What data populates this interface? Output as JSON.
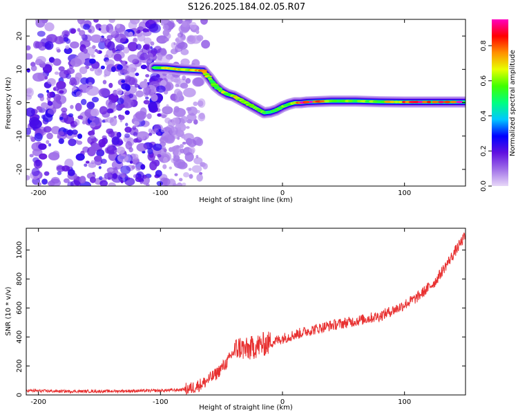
{
  "title": "S126.2025.184.02.05.R07",
  "chart_data": [
    {
      "type": "heatmap",
      "xlabel": "Height of straight line (km)",
      "ylabel": "Frequency (Hz)",
      "xlim": [
        -210,
        150
      ],
      "ylim": [
        -25,
        25
      ],
      "x_ticks": [
        -200,
        -100,
        0,
        100
      ],
      "y_ticks": [
        20,
        10,
        0,
        -10,
        -20
      ],
      "tick_labels_x": [
        "-200",
        "-100",
        "0",
        "100"
      ],
      "tick_labels_y": [
        "20",
        "10",
        "0",
        "-10",
        "-20"
      ],
      "colorbar": {
        "label": "Normalized spectral amplitude",
        "range": [
          0,
          0.95
        ],
        "ticks": [
          "0.0",
          "0.2",
          "0.4",
          "0.6",
          "0.8"
        ],
        "colormap": [
          "#e8d8f8",
          "#a070e8",
          "#6010e0",
          "#0000ff",
          "#00c8ff",
          "#00ff80",
          "#40ff00",
          "#e8ff00",
          "#ff9000",
          "#ff0000",
          "#ff00c0"
        ]
      },
      "noise_region_x": [
        -210,
        -80
      ],
      "ridge": {
        "x": [
          -105,
          -95,
          -85,
          -75,
          -65,
          -60,
          -55,
          -50,
          -45,
          -40,
          -35,
          -30,
          -25,
          -20,
          -15,
          -10,
          -5,
          0,
          5,
          10,
          15,
          20,
          40,
          60,
          80,
          100,
          120,
          150
        ],
        "y": [
          10.5,
          10.4,
          10.0,
          9.8,
          9.6,
          7.5,
          5.0,
          3.5,
          2.5,
          2.0,
          1.0,
          0.0,
          -1.0,
          -2.0,
          -3.0,
          -2.8,
          -2.2,
          -1.2,
          -0.5,
          0.0,
          0.0,
          0.2,
          0.5,
          0.5,
          0.3,
          0.2,
          0.2,
          0.2
        ],
        "amplitude": [
          0.5,
          0.7,
          0.75,
          0.7,
          0.8,
          0.6,
          0.55,
          0.6,
          0.6,
          0.65,
          0.65,
          0.6,
          0.55,
          0.55,
          0.55,
          0.5,
          0.5,
          0.55,
          0.6,
          0.6,
          0.85,
          0.9,
          0.6,
          0.55,
          0.6,
          0.8,
          0.85,
          0.85
        ]
      }
    },
    {
      "type": "line",
      "xlabel": "Height of straight line (km)",
      "ylabel": "SNR (10 * v/v)",
      "xlim": [
        -210,
        150
      ],
      "ylim": [
        0,
        1150
      ],
      "x_ticks": [
        -200,
        -100,
        0,
        100
      ],
      "y_ticks": [
        0,
        200,
        400,
        600,
        800,
        1000
      ],
      "tick_labels_x": [
        "-200",
        "-100",
        "0",
        "100"
      ],
      "tick_labels_y": [
        "0",
        "200",
        "400",
        "600",
        "800",
        "1000"
      ],
      "color": "#e83030",
      "series": [
        {
          "x": [
            -210,
            -180,
            -150,
            -120,
            -100,
            -85,
            -75,
            -65,
            -55,
            -45,
            -40,
            -35,
            -30,
            -20,
            -10,
            0,
            20,
            40,
            60,
            80,
            95,
            110,
            125,
            140,
            150
          ],
          "y": [
            30,
            25,
            25,
            28,
            30,
            35,
            45,
            80,
            140,
            230,
            300,
            330,
            310,
            340,
            360,
            390,
            440,
            480,
            510,
            545,
            600,
            670,
            780,
            970,
            1100
          ]
        }
      ]
    }
  ]
}
